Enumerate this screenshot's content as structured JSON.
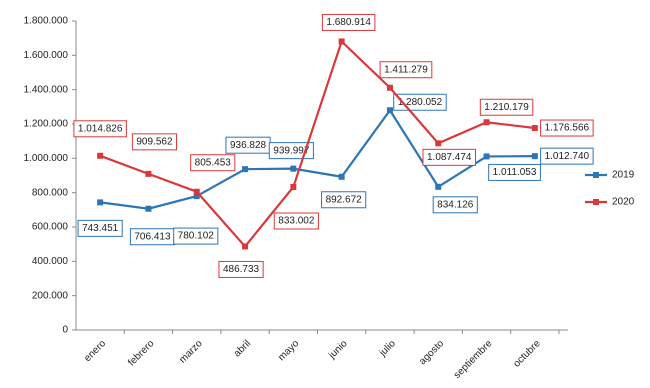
{
  "chart_data": {
    "type": "line",
    "categories": [
      "enero",
      "febrero",
      "marzo",
      "abril",
      "mayo",
      "junio",
      "julio",
      "agosto",
      "septiembre",
      "octubre"
    ],
    "ylim": [
      0,
      1800000
    ],
    "yticks": [
      0,
      {
        "value": 200000,
        "label": "200.000"
      },
      {
        "value": 400000,
        "label": "400.000"
      },
      {
        "value": 600000,
        "label": "600.000"
      },
      {
        "value": 800000,
        "label": "800.000"
      },
      {
        "value": 1000000,
        "label": "1.000.000"
      },
      {
        "value": 1200000,
        "label": "1.200.000"
      },
      {
        "value": 1400000,
        "label": "1.400.000"
      },
      {
        "value": 1600000,
        "label": "1.600.000"
      },
      {
        "value": 1800000,
        "label": "1.800.000"
      }
    ],
    "legend": "right",
    "series": [
      {
        "name": "2019",
        "color": "#2e75b6",
        "values": [
          743451,
          706413,
          780102,
          936828,
          939997,
          892672,
          1280052,
          834126,
          1011053,
          1012740
        ],
        "value_labels": [
          "743.451",
          "706.413",
          "780.102",
          "936.828",
          "939.997",
          "892.672",
          "1.280.052",
          "834.126",
          "1.011.053",
          "1.012.740"
        ]
      },
      {
        "name": "2020",
        "color": "#d9393a",
        "values": [
          1014826,
          909562,
          805453,
          486733,
          833002,
          1680914,
          1411279,
          1087474,
          1210179,
          1176566
        ],
        "value_labels": [
          "1.014.826",
          "909.562",
          "805.453",
          "486.733",
          "833.002",
          "1.680.914",
          "1.411.279",
          "1.087.474",
          "1.210.179",
          "1.176.566"
        ]
      }
    ]
  }
}
